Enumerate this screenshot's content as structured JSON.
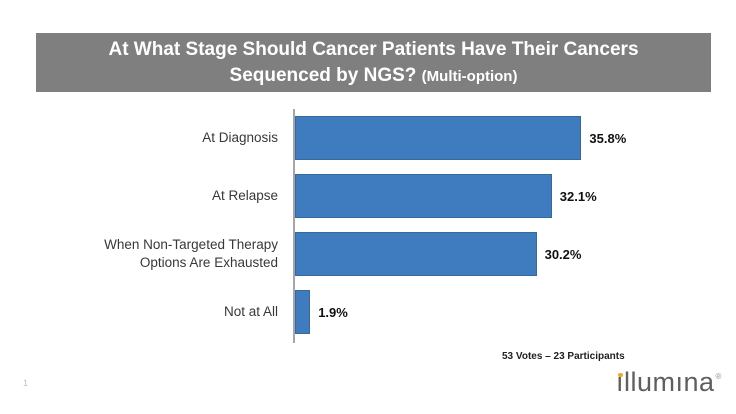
{
  "slide": {
    "page_number": "1"
  },
  "title": {
    "line1": "At What Stage Should Cancer Patients Have Their Cancers",
    "line2_main": "Sequenced by NGS?",
    "line2_sub": "(Multi-option)"
  },
  "chart_data": {
    "type": "bar",
    "orientation": "horizontal",
    "title": "At What Stage Should Cancer Patients Have Their Cancers Sequenced by NGS? (Multi-option)",
    "categories": [
      "At Diagnosis",
      "At Relapse",
      "When Non-Targeted Therapy Options Are Exhausted",
      "Not at All"
    ],
    "categories_display": [
      "At Diagnosis",
      "At Relapse",
      "When Non-Targeted Therapy\nOptions Are Exhausted",
      "Not at All"
    ],
    "values": [
      35.8,
      32.1,
      30.2,
      1.9
    ],
    "value_labels": [
      "35.8%",
      "32.1%",
      "30.2%",
      "1.9%"
    ],
    "xlim": [
      0,
      40
    ],
    "xlabel": "",
    "ylabel": "",
    "grid": false,
    "legend": false,
    "bar_color": "#3E7CBF",
    "annotation": "53 Votes – 23 Participants"
  },
  "footer": {
    "votes_note": "53 Votes – 23 Participants",
    "logo_text": "ıllumına",
    "logo_registered": "®"
  },
  "colors": {
    "title_bar_bg": "#7F7F7F",
    "title_text": "#FFFFFF",
    "bar_fill": "#3E7CBF",
    "axis_line": "#A6A6A6",
    "logo_gray": "#5D6063",
    "logo_orange": "#F5A91F"
  }
}
